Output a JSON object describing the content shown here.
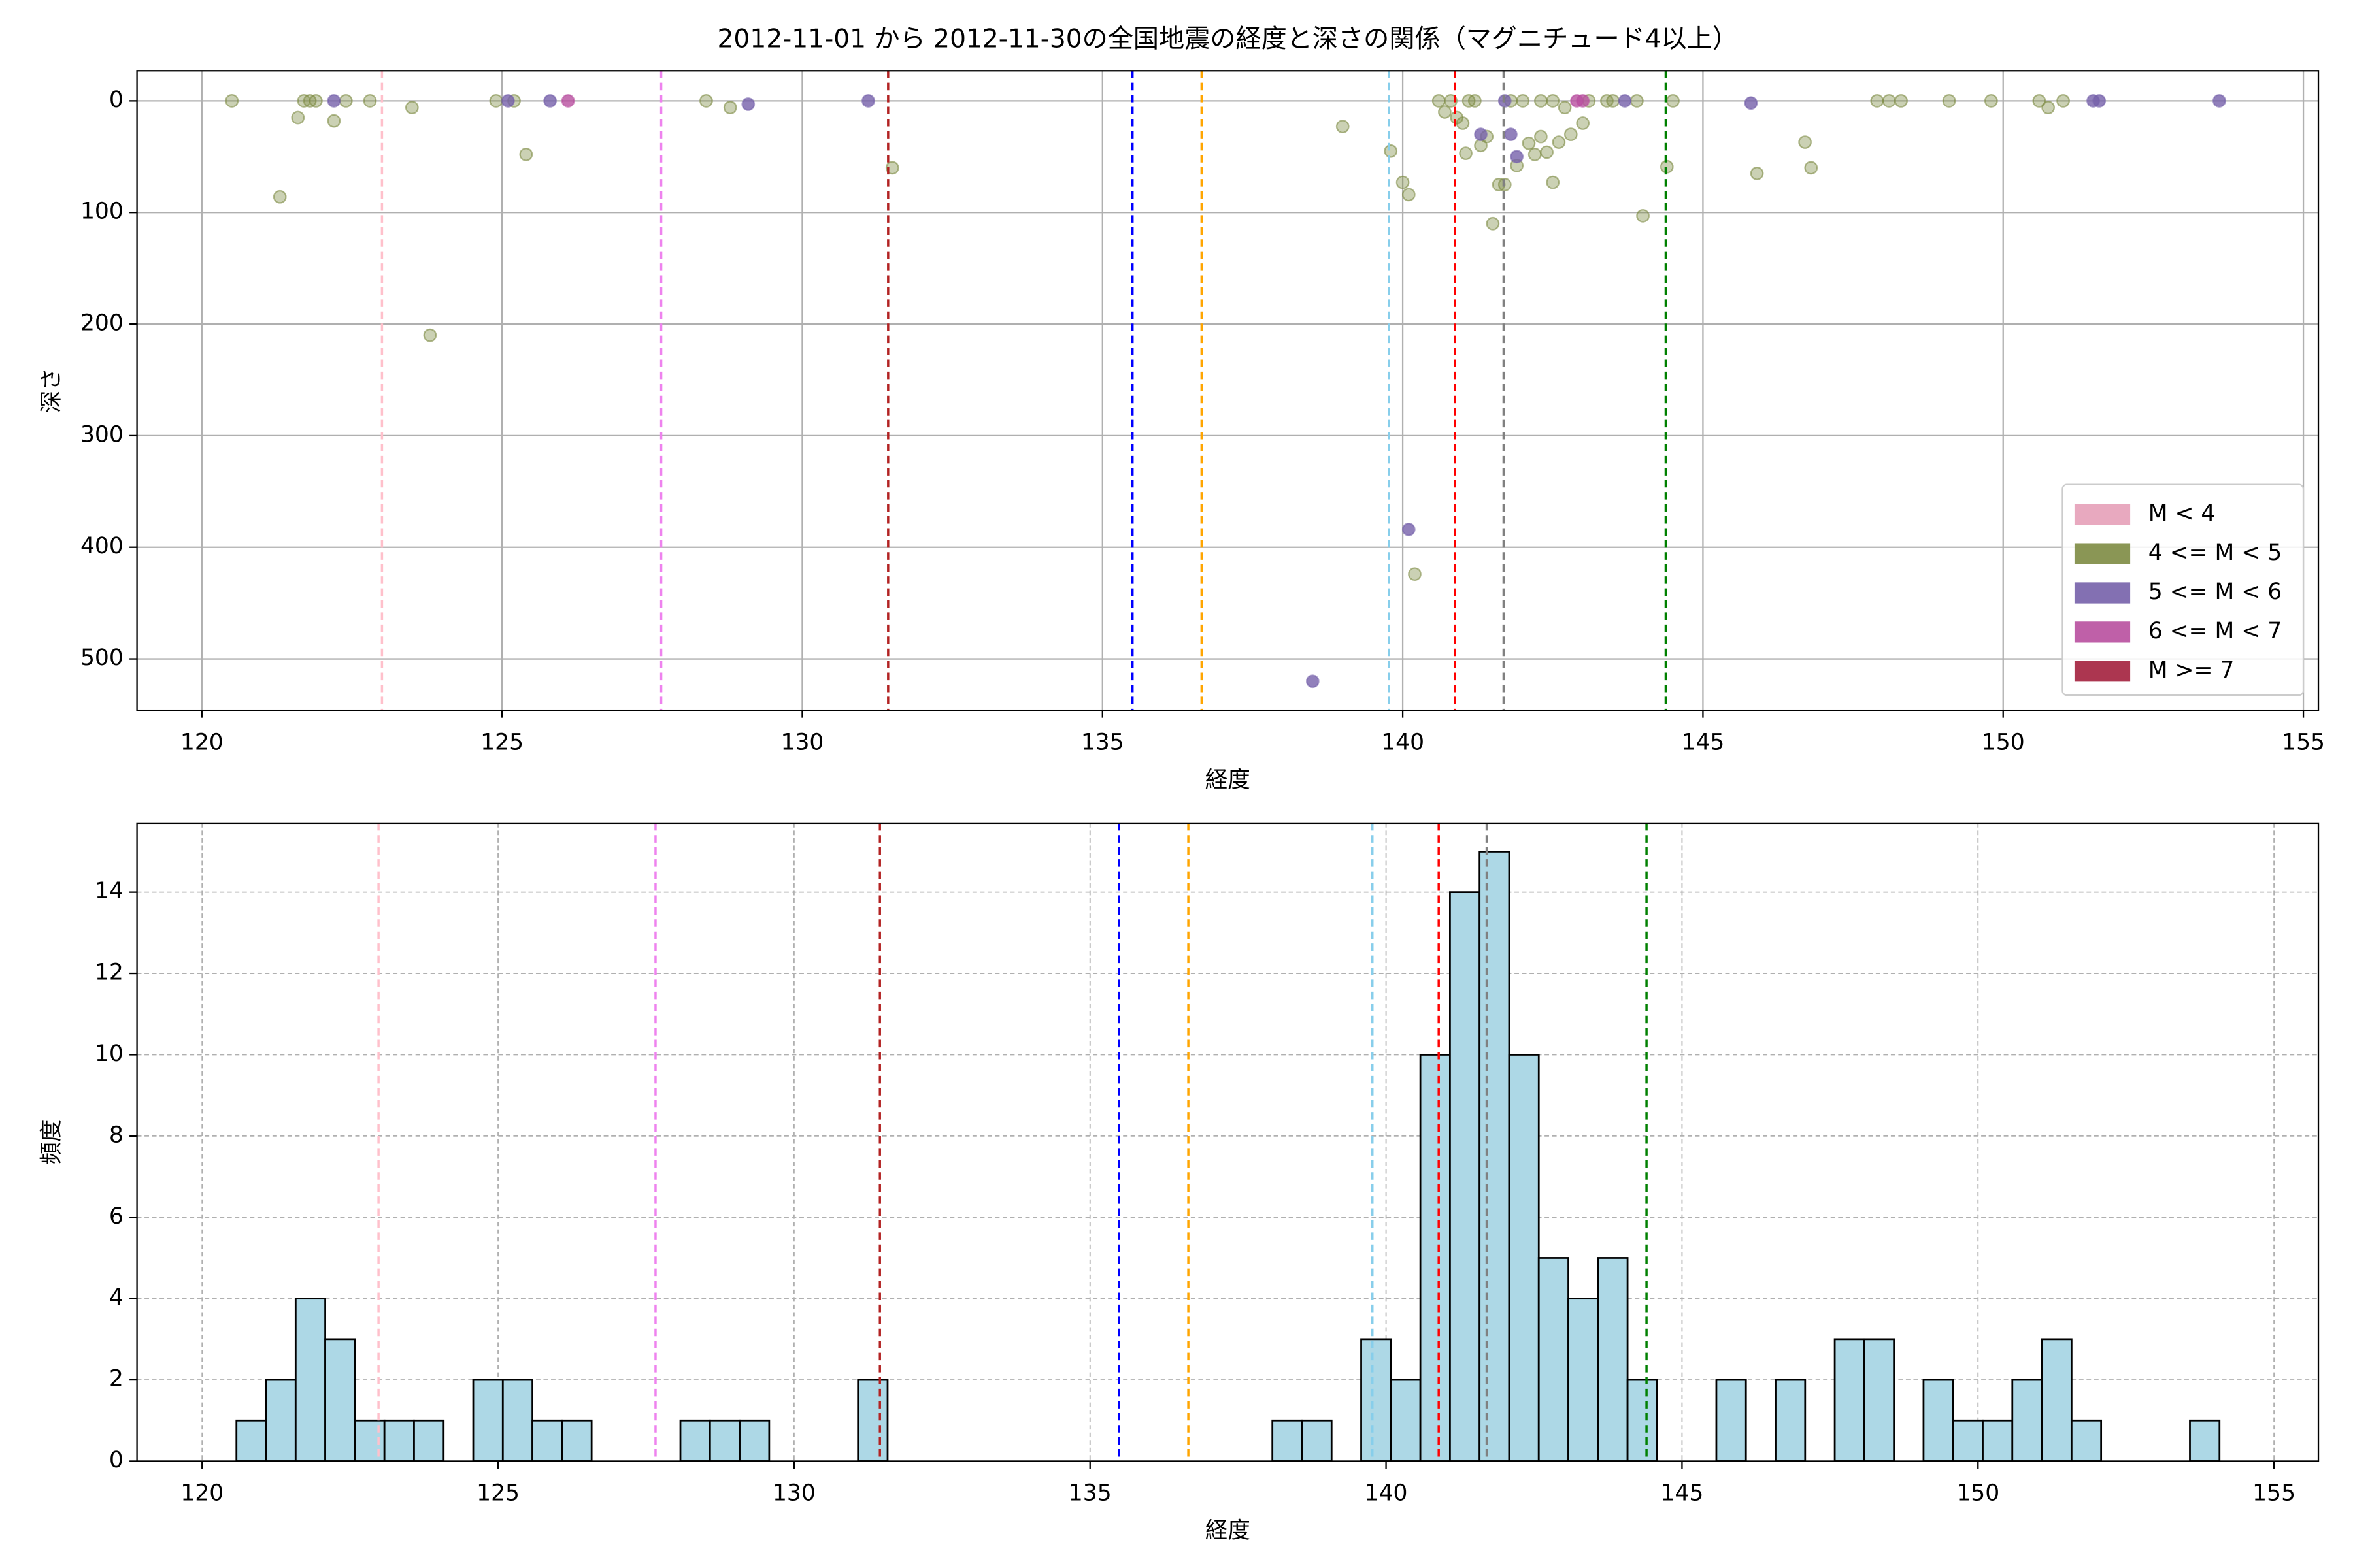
{
  "chart_data": [
    {
      "type": "scatter",
      "title": "2012-11-01 から 2012-11-30の全国地震の経度と深さの関係（マグニチュード4以上）",
      "xlabel": "経度",
      "ylabel": "深さ",
      "xlim": [
        118.92,
        155.25
      ],
      "ylim": [
        546,
        -27
      ],
      "xticks": [
        120,
        125,
        130,
        135,
        140,
        145,
        150,
        155
      ],
      "yticks": [
        0,
        100,
        200,
        300,
        400,
        500
      ],
      "grid": "solid",
      "legend": "lower right",
      "vlines": [
        {
          "x": 123.0,
          "color": "pink"
        },
        {
          "x": 127.65,
          "color": "violet"
        },
        {
          "x": 131.43,
          "color": "#b22222"
        },
        {
          "x": 135.5,
          "color": "blue"
        },
        {
          "x": 136.65,
          "color": "orange"
        },
        {
          "x": 139.77,
          "color": "skyblue"
        },
        {
          "x": 140.87,
          "color": "red"
        },
        {
          "x": 141.68,
          "color": "gray"
        },
        {
          "x": 144.38,
          "color": "green"
        }
      ],
      "series": [
        {
          "name": "M < 4",
          "color": "#e5a0b8",
          "x": [],
          "y": []
        },
        {
          "name": "4 <= M < 5",
          "color": "#7d8b43",
          "x": [
            120.5,
            121.3,
            121.6,
            121.7,
            121.8,
            121.9,
            122.2,
            122.4,
            122.8,
            123.5,
            123.8,
            124.9,
            125.2,
            125.4,
            128.4,
            128.8,
            131.5,
            139.0,
            139.8,
            140.0,
            140.1,
            140.2,
            140.6,
            140.7,
            140.8,
            140.9,
            141.0,
            141.1,
            141.05,
            141.3,
            141.4,
            141.5,
            141.6,
            141.7,
            141.8,
            141.9,
            142.0,
            142.1,
            142.2,
            142.3,
            142.4,
            142.5,
            142.5,
            142.6,
            142.7,
            142.8,
            143.0,
            143.1,
            143.4,
            143.5,
            143.9,
            144.0,
            144.4,
            144.5,
            145.9,
            146.7,
            146.8,
            147.9,
            148.1,
            148.3,
            149.1,
            149.8,
            150.6,
            150.75,
            151.0,
            141.2,
            142.3
          ],
          "y": [
            0,
            86,
            15,
            0,
            0,
            0,
            18,
            0,
            0,
            6,
            210,
            0,
            0,
            48,
            0,
            6,
            60,
            23,
            45,
            73,
            84,
            424,
            0,
            10,
            0,
            15,
            20,
            0,
            47,
            40,
            32,
            110,
            75,
            75,
            0,
            58,
            0,
            38,
            48,
            32,
            46,
            0,
            73,
            37,
            6,
            30,
            20,
            0,
            0,
            0,
            0,
            103,
            59,
            0,
            65,
            37,
            60,
            0,
            0,
            0,
            0,
            0,
            0,
            6,
            0,
            0,
            0
          ]
        },
        {
          "name": "5 <= M < 6",
          "color": "#7560aa",
          "x": [
            122.2,
            125.1,
            125.8,
            129.1,
            131.1,
            138.5,
            140.1,
            141.3,
            141.7,
            141.8,
            141.9,
            143.7,
            145.8,
            151.6,
            151.5,
            153.6
          ],
          "y": [
            0,
            0,
            0,
            3,
            0,
            520,
            384,
            30,
            0,
            30,
            50,
            0,
            2,
            0,
            0,
            0
          ]
        },
        {
          "name": "6 <= M < 7",
          "color": "#b84f9f",
          "x": [
            126.1,
            142.9,
            143.0
          ],
          "y": [
            0,
            0,
            0
          ]
        },
        {
          "name": "M >= 7",
          "color": "#a3203d",
          "x": [],
          "y": []
        }
      ]
    },
    {
      "type": "histogram",
      "xlabel": "経度",
      "ylabel": "頻度",
      "xlim": [
        118.9,
        155.75
      ],
      "ylim": [
        0,
        15.7
      ],
      "xticks": [
        120,
        125,
        130,
        135,
        140,
        145,
        150,
        155
      ],
      "yticks": [
        0,
        2,
        4,
        6,
        8,
        10,
        12,
        14
      ],
      "grid": "dashed",
      "color": "#add8e6",
      "vlines": [
        {
          "x": 122.98,
          "color": "pink"
        },
        {
          "x": 127.66,
          "color": "violet"
        },
        {
          "x": 131.45,
          "color": "#b22222"
        },
        {
          "x": 135.49,
          "color": "blue"
        },
        {
          "x": 136.66,
          "color": "orange"
        },
        {
          "x": 139.77,
          "color": "skyblue"
        },
        {
          "x": 140.89,
          "color": "red"
        },
        {
          "x": 141.7,
          "color": "gray"
        },
        {
          "x": 144.4,
          "color": "green"
        }
      ],
      "bins": [
        120.58,
        121.08,
        121.58,
        122.08,
        122.58,
        123.08,
        123.58,
        124.08,
        124.58,
        125.08,
        125.58,
        126.08,
        126.58,
        127.08,
        127.58,
        128.08,
        128.58,
        129.08,
        129.58,
        130.08,
        130.58,
        131.08,
        131.58,
        132.08,
        132.58,
        133.08,
        133.58,
        134.08,
        134.58,
        135.08,
        135.58,
        136.08,
        136.58,
        137.08,
        137.58,
        138.08,
        138.58,
        139.08,
        139.58,
        140.08,
        140.58,
        141.08,
        141.58,
        142.08,
        142.58,
        143.08,
        143.58,
        144.08,
        144.58,
        145.08,
        145.58,
        146.08,
        146.58,
        147.08,
        147.58,
        148.08,
        148.58,
        149.08,
        149.58,
        150.08,
        150.58,
        151.08,
        151.58,
        152.08,
        152.58,
        153.08,
        153.58,
        154.08
      ],
      "values": [
        1,
        2,
        4,
        3,
        1,
        1,
        1,
        0,
        2,
        2,
        1,
        1,
        0,
        0,
        0,
        1,
        1,
        1,
        0,
        0,
        0,
        2,
        0,
        0,
        0,
        0,
        0,
        0,
        0,
        0,
        0,
        0,
        0,
        0,
        0,
        1,
        1,
        0,
        3,
        2,
        10,
        14,
        15,
        10,
        5,
        4,
        5,
        2,
        0,
        0,
        2,
        0,
        2,
        0,
        3,
        3,
        0,
        2,
        1,
        1,
        2,
        3,
        1,
        0,
        0,
        0,
        1
      ]
    }
  ]
}
